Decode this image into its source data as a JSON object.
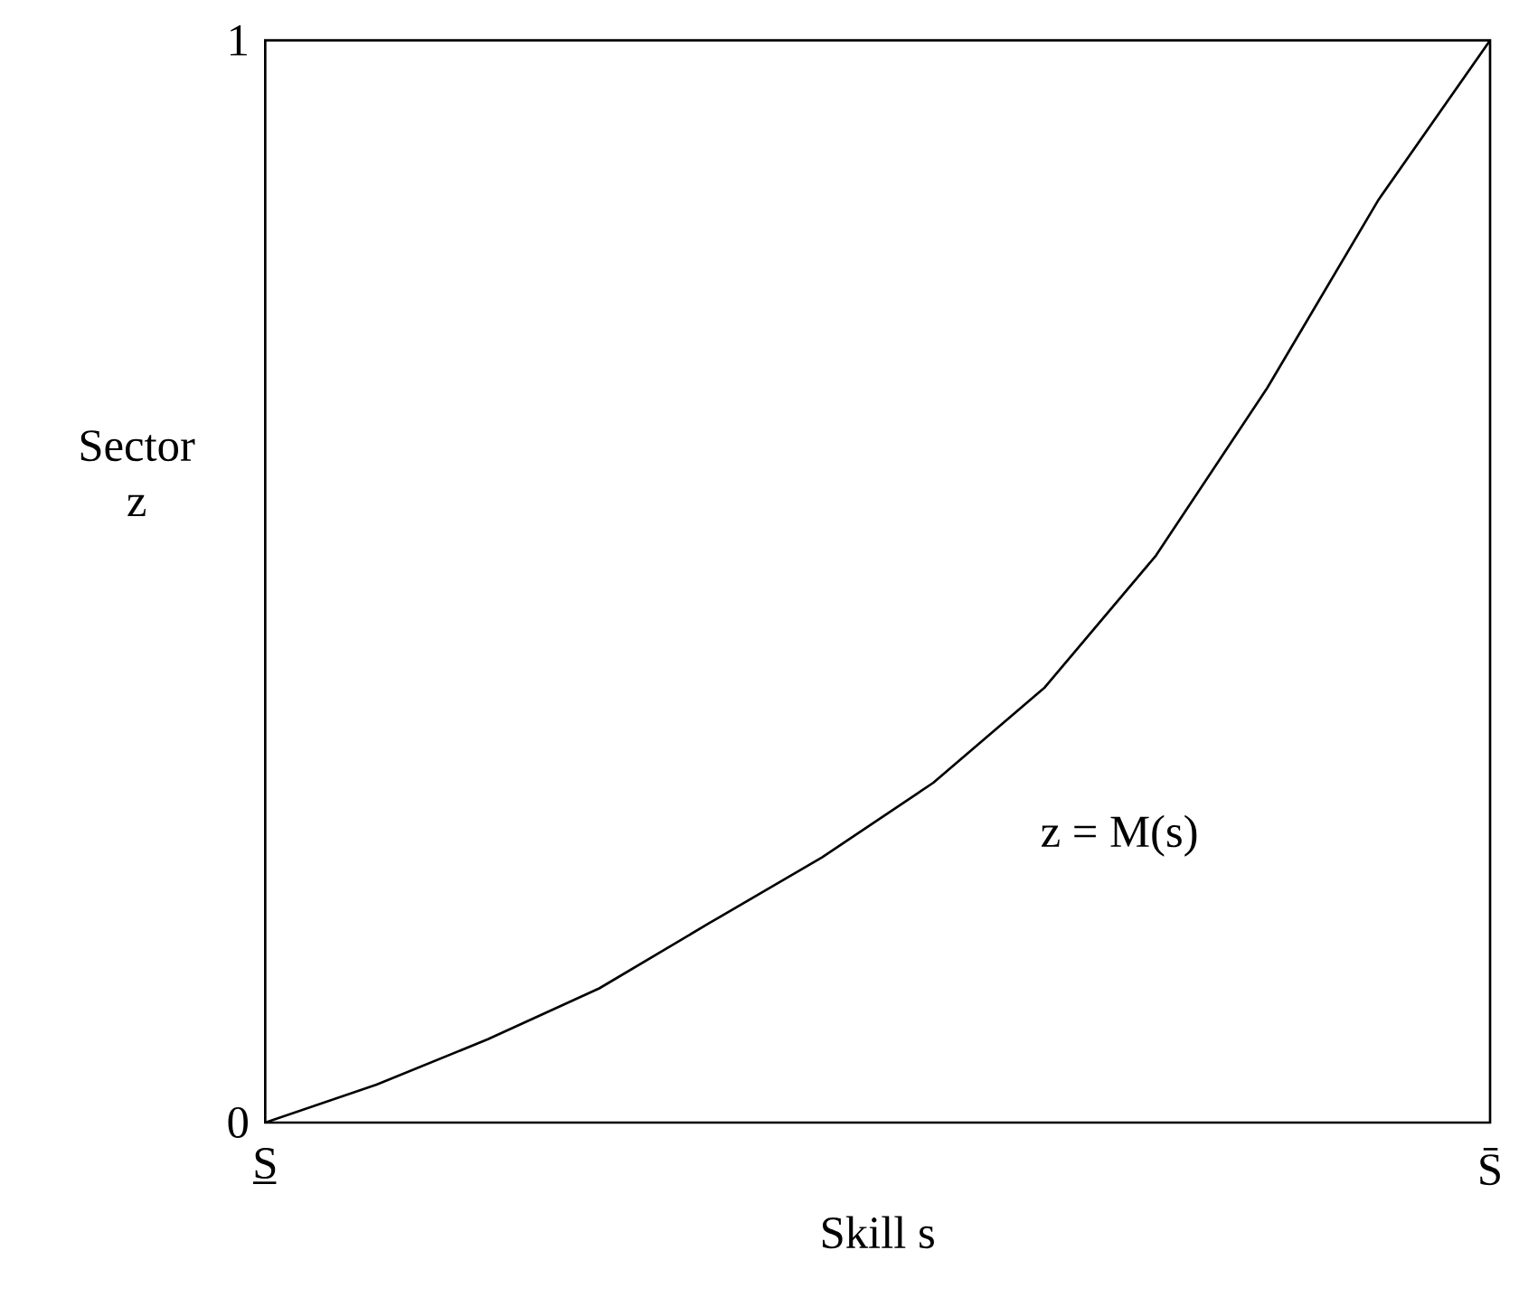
{
  "chart_data": {
    "type": "line",
    "xlabel": "Skill s",
    "ylabel": "Sector z",
    "ylim": [
      0,
      1
    ],
    "categories": [
      "S̲",
      null,
      null,
      null,
      null,
      null,
      null,
      null,
      null,
      null,
      null,
      "S̄"
    ],
    "yticks": [
      0,
      1
    ],
    "series": [
      {
        "name": "z = M(s)",
        "color": "#000000",
        "values": [
          0,
          0.035,
          0.077,
          0.124,
          0.185,
          0.245,
          0.314,
          0.402,
          0.524,
          0.679,
          0.853,
          1
        ]
      }
    ],
    "marker": "none",
    "line_style": "solid"
  }
}
